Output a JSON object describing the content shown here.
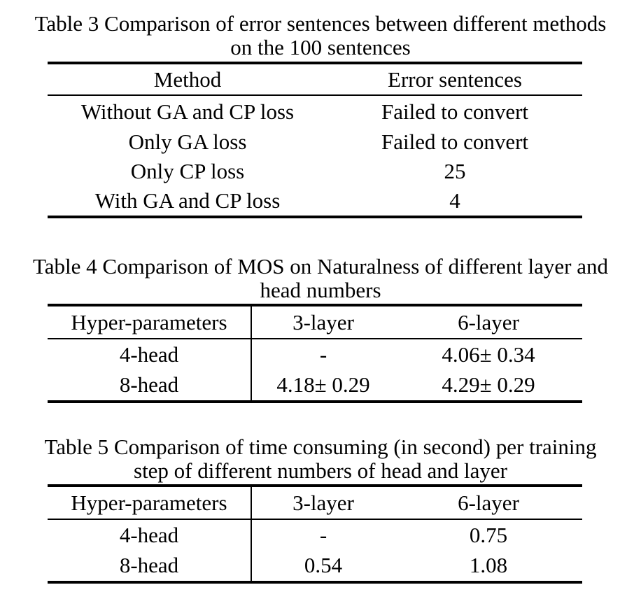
{
  "tables": [
    {
      "caption_line1": "Table 3 Comparison of error sentences between different methods",
      "caption_line2": "on the 100 sentences",
      "headers": [
        "Method",
        "Error sentences"
      ],
      "rows": [
        [
          "Without GA and CP loss",
          "Failed to convert"
        ],
        [
          "Only GA loss",
          "Failed to convert"
        ],
        [
          "Only CP loss",
          "25"
        ],
        [
          "With GA and CP loss",
          "4"
        ]
      ]
    },
    {
      "caption_line1": "Table 4 Comparison of MOS on Naturalness of different layer and",
      "caption_line2": "head numbers",
      "headers": [
        "Hyper-parameters",
        "3-layer",
        "6-layer"
      ],
      "rows": [
        [
          "4-head",
          "-",
          "4.06± 0.34"
        ],
        [
          "8-head",
          "4.18± 0.29",
          "4.29± 0.29"
        ]
      ]
    },
    {
      "caption_line1": "Table 5 Comparison of time consuming (in second) per training",
      "caption_line2": "step of different numbers of head and layer",
      "headers": [
        "Hyper-parameters",
        "3-layer",
        "6-layer"
      ],
      "rows": [
        [
          "4-head",
          "-",
          "0.75"
        ],
        [
          "8-head",
          "0.54",
          "1.08"
        ]
      ]
    }
  ]
}
